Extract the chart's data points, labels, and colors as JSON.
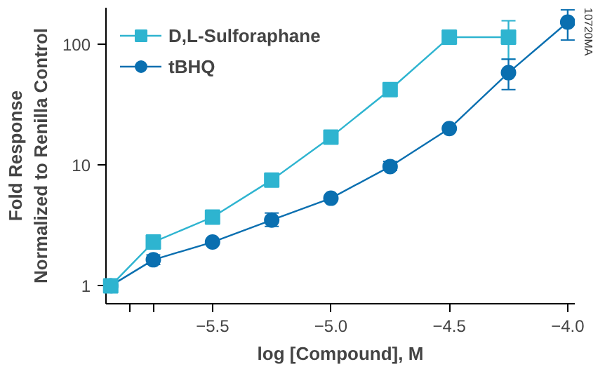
{
  "chart_data": {
    "type": "line",
    "xlabel": "log [Compound], M",
    "ylabel": "Fold Response\nNormalized to Renilla Control",
    "x": [
      -5.93,
      -5.75,
      -5.5,
      -5.25,
      -5.0,
      -4.75,
      -4.5,
      -4.25,
      -4.0
    ],
    "series": [
      {
        "name": "D,L-Sulforaphane",
        "color": "#2eb4d0",
        "marker": "square",
        "values": [
          1,
          2.3,
          3.7,
          7.5,
          17,
          42,
          114,
          114,
          null
        ],
        "errors": [
          null,
          null,
          null,
          [
            6.8,
            8.3
          ],
          null,
          null,
          null,
          [
            75,
            156
          ],
          null
        ]
      },
      {
        "name": "tBHQ",
        "color": "#0a6fb0",
        "marker": "circle",
        "values": [
          1,
          1.64,
          2.3,
          3.5,
          5.3,
          9.7,
          20,
          58,
          152
        ],
        "errors": [
          null,
          [
            1.5,
            1.8
          ],
          null,
          [
            3.1,
            4.0
          ],
          null,
          [
            9.0,
            10.7
          ],
          null,
          [
            42,
            75
          ],
          [
            108,
            192
          ]
        ]
      }
    ],
    "xlim": [
      -5.95,
      -3.97
    ],
    "xticks": [
      {
        "value": -5.85,
        "label": null
      },
      {
        "value": -5.75,
        "label": null
      },
      {
        "value": -5.5,
        "label": "−5.5"
      },
      {
        "value": -5.0,
        "label": "−5.0"
      },
      {
        "value": -4.5,
        "label": "−4.5"
      },
      {
        "value": -4.0,
        "label": "−4.0"
      }
    ],
    "ylim": [
      0.71,
      200
    ],
    "yticks": [
      1,
      10,
      100
    ],
    "log": "y",
    "grid": false,
    "legend": "top left",
    "line_style": "solid",
    "annotations": [
      "10720MA"
    ]
  }
}
